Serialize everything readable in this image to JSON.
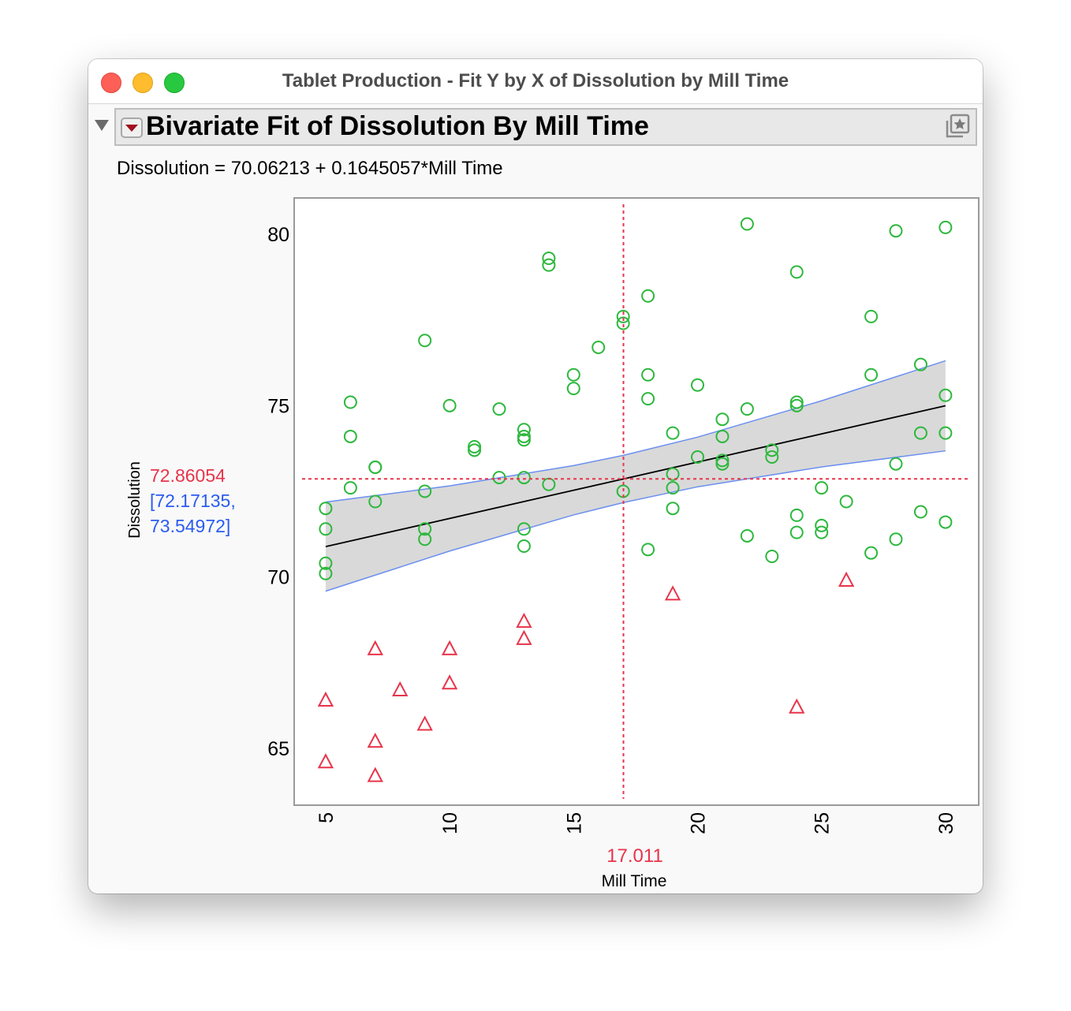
{
  "window": {
    "title": "Tablet Production - Fit Y by X of Dissolution by Mill Time",
    "traffic_lights": {
      "close": "#fe5f57",
      "minimize": "#febc2e",
      "zoom": "#28c840"
    }
  },
  "report": {
    "outline_title": "Bivariate Fit of Dissolution By Mill Time",
    "equation": "Dissolution = 70.06213 + 0.1645057*Mill Time",
    "icons": [
      "disclosure-triangle-icon",
      "red-triangle-menu-icon",
      "star-window-icon"
    ]
  },
  "chart_data": {
    "type": "scatter",
    "xlabel": "Mill Time",
    "ylabel": "Dissolution",
    "xlim": [
      3.73,
      31.34
    ],
    "ylim": [
      63.34,
      81.06
    ],
    "x_ticks": [
      "5",
      "10",
      "15",
      "20",
      "25",
      "30"
    ],
    "y_ticks": [
      "65",
      "70",
      "75",
      "80"
    ],
    "grid": false,
    "legend": "none",
    "series": [
      {
        "marker": "circle",
        "color": "#2db83d",
        "points": [
          [
            5,
            72.0
          ],
          [
            5,
            71.4
          ],
          [
            5,
            70.4
          ],
          [
            5,
            70.1
          ],
          [
            6,
            75.1
          ],
          [
            6,
            74.1
          ],
          [
            6,
            72.6
          ],
          [
            7,
            73.2
          ],
          [
            7,
            73.2
          ],
          [
            7,
            72.2
          ],
          [
            9,
            76.9
          ],
          [
            9,
            72.5
          ],
          [
            9,
            71.4
          ],
          [
            9,
            71.1
          ],
          [
            10,
            75.0
          ],
          [
            11,
            73.8
          ],
          [
            11,
            73.7
          ],
          [
            12,
            74.9
          ],
          [
            12,
            72.9
          ],
          [
            13,
            74.3
          ],
          [
            13,
            74.1
          ],
          [
            13,
            74.0
          ],
          [
            13,
            72.9
          ],
          [
            13,
            71.4
          ],
          [
            13,
            70.9
          ],
          [
            14,
            79.3
          ],
          [
            14,
            79.1
          ],
          [
            14,
            72.7
          ],
          [
            15,
            75.9
          ],
          [
            15,
            75.5
          ],
          [
            16,
            76.7
          ],
          [
            17,
            77.6
          ],
          [
            17,
            77.4
          ],
          [
            17,
            72.5
          ],
          [
            18,
            78.2
          ],
          [
            18,
            75.9
          ],
          [
            18,
            75.2
          ],
          [
            18,
            70.8
          ],
          [
            19,
            74.2
          ],
          [
            19,
            73.0
          ],
          [
            19,
            72.6
          ],
          [
            19,
            72.0
          ],
          [
            20,
            75.6
          ],
          [
            20,
            73.5
          ],
          [
            21,
            74.6
          ],
          [
            21,
            74.1
          ],
          [
            21,
            73.4
          ],
          [
            21,
            73.3
          ],
          [
            22,
            80.3
          ],
          [
            22,
            74.9
          ],
          [
            22,
            71.2
          ],
          [
            23,
            73.7
          ],
          [
            23,
            73.5
          ],
          [
            23,
            70.6
          ],
          [
            24,
            78.9
          ],
          [
            24,
            75.1
          ],
          [
            24,
            75.0
          ],
          [
            24,
            71.8
          ],
          [
            24,
            71.3
          ],
          [
            25,
            72.6
          ],
          [
            25,
            71.5
          ],
          [
            25,
            71.3
          ],
          [
            26,
            72.2
          ],
          [
            27,
            77.6
          ],
          [
            27,
            75.9
          ],
          [
            27,
            70.7
          ],
          [
            28,
            80.1
          ],
          [
            28,
            73.3
          ],
          [
            28,
            71.1
          ],
          [
            29,
            76.2
          ],
          [
            29,
            74.2
          ],
          [
            29,
            71.9
          ],
          [
            30,
            80.2
          ],
          [
            30,
            75.3
          ],
          [
            30,
            74.2
          ],
          [
            30,
            71.6
          ]
        ]
      },
      {
        "marker": "triangle",
        "color": "#e8344a",
        "points": [
          [
            5,
            66.4
          ],
          [
            5,
            64.6
          ],
          [
            7,
            67.9
          ],
          [
            7,
            65.2
          ],
          [
            7,
            64.2
          ],
          [
            8,
            66.7
          ],
          [
            9,
            65.7
          ],
          [
            10,
            67.9
          ],
          [
            10,
            66.9
          ],
          [
            13,
            68.7
          ],
          [
            13,
            68.2
          ],
          [
            19,
            69.5
          ],
          [
            24,
            66.2
          ],
          [
            26,
            69.9
          ]
        ]
      }
    ],
    "fit": {
      "intercept": 70.06213,
      "slope": 0.1645057,
      "x_range": [
        5,
        30
      ],
      "color": "#000000"
    },
    "confidence_band": {
      "fill": "#d9d9d9",
      "line_color": "#6b8ff0",
      "x": [
        5,
        10,
        15,
        17.011,
        20,
        25,
        30
      ],
      "lower": [
        69.585,
        70.756,
        71.81,
        72.17135,
        72.63,
        73.21,
        73.68
      ],
      "upper": [
        72.185,
        72.658,
        73.25,
        73.54972,
        74.08,
        75.14,
        76.31
      ]
    },
    "crosshair": {
      "x": 17.011,
      "y": 72.86054,
      "color": "#e8344a",
      "x_label": "17.011",
      "y_label": "72.86054",
      "ci_label_1": "[72.17135,",
      "ci_label_2": "73.54972]",
      "ci_color": "#2a5cf0"
    }
  }
}
